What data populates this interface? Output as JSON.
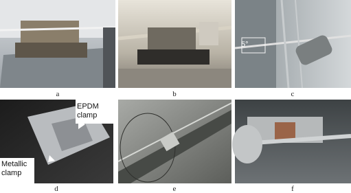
{
  "panels": [
    {
      "label": "a"
    },
    {
      "label": "b"
    },
    {
      "label": "c"
    },
    {
      "label": "d"
    },
    {
      "label": "e"
    },
    {
      "label": "f"
    }
  ],
  "annotations": {
    "angle": "5°",
    "epdm_clamp": [
      "EPDM",
      "clamp"
    ],
    "metallic_clamp": [
      "Metallic",
      "clamp"
    ]
  }
}
